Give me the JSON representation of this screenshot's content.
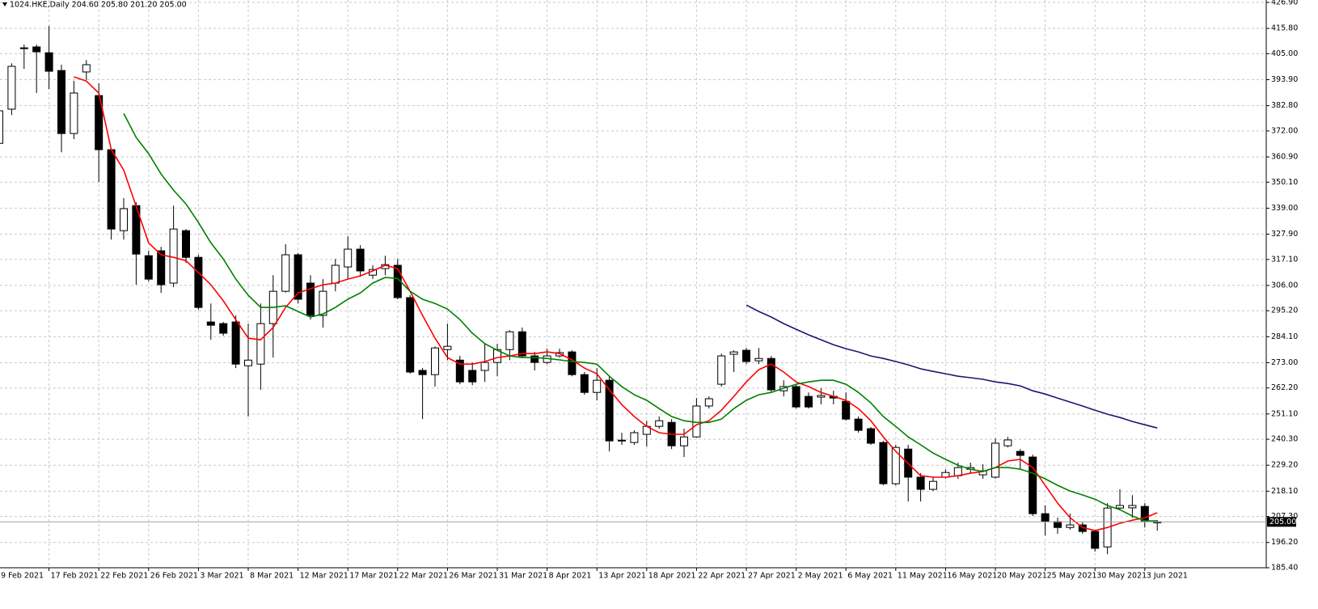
{
  "chart_data": {
    "type": "candlestick",
    "title": "1024.HKE,Daily  204.60 205.80 201.20 205.00",
    "categories": [
      "9 Feb 2021",
      null,
      null,
      null,
      "17 Feb 2021",
      null,
      null,
      null,
      "22 Feb 2021",
      null,
      null,
      null,
      "26 Feb 2021",
      null,
      null,
      null,
      "3 Mar 2021",
      null,
      null,
      null,
      "8 Mar 2021",
      null,
      null,
      null,
      "12 Mar 2021",
      null,
      null,
      null,
      "17 Mar 2021",
      null,
      null,
      null,
      "22 Mar 2021",
      null,
      null,
      null,
      "26 Mar 2021",
      null,
      null,
      null,
      "31 Mar 2021",
      null,
      null,
      null,
      "8 Apr 2021",
      null,
      null,
      null,
      "13 Apr 2021",
      null,
      null,
      null,
      "18 Apr 2021",
      null,
      null,
      null,
      "22 Apr 2021",
      null,
      null,
      null,
      "27 Apr 2021",
      null,
      null,
      null,
      "2 May 2021",
      null,
      null,
      null,
      "6 May 2021",
      null,
      null,
      null,
      "11 May 2021",
      null,
      null,
      null,
      "16 May 2021",
      null,
      null,
      null,
      "20 May 2021",
      null,
      null,
      null,
      "25 May 2021",
      null,
      null,
      null,
      "30 May 2021",
      null,
      null,
      null,
      "3 Jun 2021",
      null
    ],
    "open": [
      366.7,
      381.3,
      407.2,
      407.9,
      405.4,
      397.8,
      370.9,
      397.2,
      387.1,
      364.0,
      329.4,
      340.1,
      318.7,
      320.8,
      307.0,
      329.4,
      318.0,
      290.4,
      289.7,
      290.4,
      271.7,
      272.4,
      289.7,
      303.5,
      319.1,
      307.0,
      293.2,
      307.0,
      313.9,
      321.5,
      310.4,
      313.2,
      314.6,
      300.8,
      269.7,
      267.9,
      278.6,
      274.1,
      269.7,
      269.7,
      273.1,
      278.6,
      286.2,
      275.9,
      273.1,
      275.9,
      277.6,
      267.9,
      260.3,
      265.5,
      239.6,
      238.9,
      242.4,
      245.8,
      247.5,
      237.5,
      241.3,
      254.5,
      263.8,
      276.6,
      278.3,
      273.8,
      274.8,
      261.0,
      262.8,
      258.6,
      258.3,
      258.6,
      256.5,
      248.9,
      244.8,
      238.9,
      221.3,
      236.1,
      224.1,
      218.9,
      224.1,
      224.7,
      227.5,
      225.1,
      224.1,
      237.5,
      235.1,
      232.7,
      208.5,
      205.1,
      202.6,
      203.7,
      200.9,
      194.3,
      210.9,
      211.0,
      211.6,
      204.6
    ],
    "high": [
      382.0,
      400.9,
      408.9,
      408.9,
      416.8,
      400.3,
      393.4,
      402.3,
      392.3,
      364.5,
      343.3,
      341.5,
      320.8,
      322.5,
      340.1,
      330.1,
      319.1,
      298.3,
      290.4,
      293.2,
      289.7,
      298.3,
      310.4,
      323.6,
      319.8,
      310.4,
      308.7,
      317.3,
      327.0,
      323.2,
      314.6,
      318.7,
      317.3,
      301.8,
      270.7,
      280.0,
      289.7,
      275.9,
      273.1,
      281.1,
      281.1,
      286.9,
      288.0,
      277.6,
      279.0,
      279.0,
      278.3,
      269.0,
      270.7,
      267.2,
      243.1,
      244.1,
      248.2,
      250.0,
      248.9,
      244.8,
      257.9,
      258.6,
      276.9,
      278.3,
      279.3,
      279.3,
      275.9,
      265.5,
      263.8,
      260.3,
      262.1,
      261.0,
      260.3,
      250.0,
      245.5,
      239.6,
      237.9,
      237.9,
      225.8,
      224.1,
      227.5,
      230.3,
      230.3,
      229.6,
      240.6,
      241.3,
      236.1,
      233.7,
      212.0,
      206.8,
      208.5,
      205.1,
      201.6,
      213.0,
      218.9,
      216.4,
      213.0,
      205.8
    ],
    "low": [
      366.0,
      378.8,
      398.5,
      388.2,
      389.9,
      362.9,
      368.5,
      393.7,
      350.2,
      325.6,
      325.6,
      306.3,
      307.7,
      302.8,
      305.3,
      315.6,
      295.6,
      282.8,
      284.5,
      270.7,
      250.0,
      261.4,
      275.2,
      303.0,
      298.3,
      291.4,
      288.0,
      303.5,
      308.7,
      309.7,
      308.7,
      310.4,
      300.1,
      268.3,
      248.9,
      262.8,
      274.1,
      263.8,
      263.4,
      264.8,
      267.2,
      274.1,
      275.2,
      269.7,
      272.4,
      275.2,
      267.2,
      259.3,
      256.9,
      235.1,
      237.9,
      237.9,
      237.2,
      244.8,
      236.1,
      232.7,
      241.0,
      253.4,
      262.8,
      269.0,
      272.4,
      272.4,
      260.3,
      258.6,
      253.4,
      253.4,
      255.2,
      255.2,
      248.2,
      243.1,
      237.9,
      220.6,
      220.6,
      213.7,
      213.7,
      218.2,
      223.4,
      223.4,
      225.8,
      223.4,
      223.4,
      236.8,
      227.5,
      207.5,
      199.2,
      199.9,
      201.6,
      199.9,
      192.3,
      191.2,
      210.2,
      206.8,
      202.6,
      201.2
    ],
    "close": [
      380.6,
      399.6,
      407.5,
      405.8,
      397.5,
      370.9,
      388.2,
      400.3,
      364.0,
      330.1,
      338.8,
      319.4,
      308.7,
      306.3,
      330.1,
      318.0,
      296.6,
      289.0,
      285.6,
      272.4,
      274.1,
      289.7,
      303.5,
      319.1,
      300.1,
      293.2,
      303.5,
      314.6,
      321.5,
      312.2,
      312.8,
      314.9,
      300.8,
      269.0,
      267.9,
      279.3,
      280.0,
      264.8,
      264.8,
      273.1,
      278.6,
      286.2,
      275.9,
      273.1,
      275.9,
      277.3,
      267.9,
      260.3,
      265.5,
      239.6,
      239.9,
      243.1,
      245.8,
      248.2,
      237.5,
      241.3,
      254.5,
      257.6,
      275.9,
      277.6,
      273.5,
      274.8,
      261.4,
      262.8,
      254.1,
      254.1,
      259.0,
      257.9,
      248.9,
      244.1,
      238.6,
      221.3,
      236.8,
      224.1,
      218.9,
      222.3,
      226.1,
      228.2,
      228.2,
      226.8,
      238.6,
      240.0,
      233.4,
      208.5,
      205.1,
      202.6,
      203.7,
      200.9,
      193.7,
      210.9,
      212.0,
      212.0,
      205.4,
      205.0
    ],
    "up_color": "#ffffff",
    "down_color": "#000000",
    "series": [
      {
        "color": "#ff0000",
        "values": [
          null,
          null,
          null,
          null,
          null,
          null,
          395.1,
          393.3,
          388.2,
          364.0,
          355.3,
          339.8,
          324.2,
          319.1,
          318.0,
          316.6,
          311.5,
          306.3,
          299.4,
          291.4,
          283.5,
          282.8,
          288.0,
          296.6,
          302.8,
          304.6,
          306.3,
          307.0,
          308.7,
          310.1,
          312.2,
          314.6,
          313.2,
          303.5,
          293.2,
          283.5,
          275.2,
          272.4,
          272.4,
          273.5,
          275.2,
          275.9,
          276.9,
          276.9,
          277.6,
          276.9,
          274.2,
          270.7,
          268.3,
          261.4,
          255.1,
          250.0,
          245.8,
          243.1,
          242.4,
          242.4,
          246.5,
          248.2,
          252.7,
          258.6,
          264.8,
          270.0,
          272.4,
          269.0,
          264.8,
          262.8,
          260.3,
          258.6,
          256.9,
          253.4,
          248.2,
          241.3,
          235.1,
          229.9,
          224.7,
          224.1,
          224.1,
          224.7,
          225.8,
          226.5,
          228.2,
          231.0,
          231.7,
          228.2,
          220.6,
          213.0,
          206.8,
          202.6,
          201.3,
          202.6,
          204.4,
          205.7,
          206.8,
          208.9
        ]
      },
      {
        "color": "#008000",
        "values": [
          null,
          null,
          null,
          null,
          null,
          null,
          null,
          null,
          null,
          null,
          379.5,
          369.2,
          362.3,
          353.6,
          346.7,
          340.8,
          332.9,
          324.2,
          317.3,
          308.7,
          301.8,
          296.6,
          296.6,
          297.3,
          294.9,
          292.5,
          293.8,
          296.6,
          300.1,
          302.8,
          307.0,
          309.4,
          309.0,
          303.5,
          300.1,
          298.3,
          295.9,
          291.4,
          285.6,
          281.1,
          278.3,
          275.9,
          275.2,
          275.2,
          274.8,
          274.2,
          273.5,
          273.1,
          272.4,
          267.2,
          262.8,
          259.3,
          256.9,
          253.4,
          250.0,
          248.2,
          247.5,
          247.5,
          248.9,
          253.4,
          256.9,
          259.3,
          260.3,
          262.1,
          263.8,
          264.8,
          265.5,
          265.5,
          263.8,
          260.3,
          255.8,
          250.0,
          245.8,
          241.3,
          237.9,
          234.4,
          231.7,
          229.2,
          227.5,
          226.5,
          228.2,
          228.2,
          227.5,
          225.8,
          223.4,
          220.6,
          218.2,
          216.5,
          214.7,
          212.0,
          210.2,
          207.5,
          205.4,
          205.4
        ]
      },
      {
        "color": "#191970",
        "values": [
          null,
          null,
          null,
          null,
          null,
          null,
          null,
          null,
          null,
          null,
          null,
          null,
          null,
          null,
          null,
          null,
          null,
          null,
          null,
          null,
          null,
          null,
          null,
          null,
          null,
          null,
          null,
          null,
          null,
          null,
          null,
          null,
          null,
          null,
          null,
          null,
          null,
          null,
          null,
          null,
          null,
          null,
          null,
          null,
          null,
          null,
          null,
          null,
          null,
          null,
          null,
          null,
          null,
          null,
          null,
          null,
          null,
          null,
          null,
          null,
          297.6,
          294.9,
          292.5,
          289.7,
          287.3,
          284.9,
          282.8,
          280.7,
          279.0,
          277.6,
          275.9,
          274.8,
          273.5,
          272.1,
          270.4,
          269.3,
          268.3,
          267.2,
          266.6,
          265.9,
          264.8,
          264.1,
          263.1,
          261.0,
          259.6,
          257.9,
          256.2,
          254.5,
          252.7,
          251.0,
          249.6,
          247.9,
          246.5,
          245.1
        ]
      }
    ],
    "last_price": {
      "value": 205,
      "label": "205.00"
    },
    "ylim": [
      185.4,
      426.9
    ],
    "yticks": [
      {
        "value": 426.9,
        "label": "426.90"
      },
      {
        "value": 415.8,
        "label": "415.80"
      },
      {
        "value": 405,
        "label": "405.00"
      },
      {
        "value": 393.9,
        "label": "393.90"
      },
      {
        "value": 382.8,
        "label": "382.80"
      },
      {
        "value": 372,
        "label": "372.00"
      },
      {
        "value": 360.9,
        "label": "360.90"
      },
      {
        "value": 350.1,
        "label": "350.10"
      },
      {
        "value": 339,
        "label": "339.00"
      },
      {
        "value": 327.9,
        "label": "327.90"
      },
      {
        "value": 317.1,
        "label": "317.10"
      },
      {
        "value": 306,
        "label": "306.00"
      },
      {
        "value": 295.2,
        "label": "295.20"
      },
      {
        "value": 284.1,
        "label": "284.10"
      },
      {
        "value": 273,
        "label": "273.00"
      },
      {
        "value": 262.2,
        "label": "262.20"
      },
      {
        "value": 251.1,
        "label": "251.10"
      },
      {
        "value": 240.3,
        "label": "240.30"
      },
      {
        "value": 229.2,
        "label": "229.20"
      },
      {
        "value": 218.1,
        "label": "218.10"
      },
      {
        "value": 207.3,
        "label": "207.30"
      },
      {
        "value": 196.2,
        "label": "196.20"
      },
      {
        "value": 185.4,
        "label": "185.40"
      }
    ],
    "grid": true
  }
}
